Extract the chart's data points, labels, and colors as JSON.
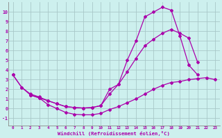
{
  "xlabel": "Windchill (Refroidissement éolien,°C)",
  "bg_color": "#cdf0ee",
  "grid_color": "#a8c8c8",
  "line_color": "#aa00aa",
  "x_ticks": [
    0,
    1,
    2,
    3,
    4,
    5,
    6,
    7,
    8,
    9,
    10,
    11,
    12,
    13,
    14,
    15,
    16,
    17,
    18,
    19,
    20,
    21,
    22,
    23
  ],
  "xlim": [
    -0.5,
    23.5
  ],
  "ylim": [
    -1.8,
    11.0
  ],
  "y_ticks": [
    -1,
    0,
    1,
    2,
    3,
    4,
    5,
    6,
    7,
    8,
    9,
    10
  ],
  "curve1_x": [
    0,
    1,
    2,
    3,
    4,
    5,
    6,
    7,
    8,
    9,
    10,
    11,
    12,
    13,
    14,
    15,
    16,
    17,
    18,
    19,
    20,
    21
  ],
  "curve1_y": [
    3.5,
    2.2,
    1.5,
    1.2,
    0.8,
    0.5,
    0.2,
    0.1,
    0.05,
    0.1,
    0.3,
    2.0,
    2.5,
    5.0,
    7.0,
    9.5,
    10.0,
    10.5,
    10.2,
    7.5,
    4.5,
    3.5
  ],
  "curve2_x": [
    0,
    1,
    2,
    3,
    4,
    5,
    6,
    7,
    8,
    9,
    10,
    11,
    12,
    13,
    14,
    15,
    16,
    17,
    18,
    19,
    20,
    21,
    22,
    23
  ],
  "curve2_y": [
    3.5,
    2.2,
    1.4,
    1.1,
    0.4,
    0.0,
    -0.4,
    -0.6,
    -0.65,
    -0.65,
    -0.5,
    -0.1,
    0.2,
    0.6,
    1.0,
    1.5,
    2.0,
    2.4,
    2.7,
    2.8,
    3.0,
    3.1,
    3.2,
    3.0
  ],
  "curve3_x": [
    2,
    3,
    4,
    5,
    6,
    7,
    8,
    9,
    10,
    11,
    12,
    13,
    14,
    15,
    16,
    17,
    18,
    19,
    20,
    21
  ],
  "curve3_y": [
    1.4,
    1.1,
    0.8,
    0.5,
    0.2,
    0.1,
    0.05,
    0.1,
    0.3,
    1.5,
    2.5,
    3.8,
    5.2,
    6.5,
    7.2,
    7.8,
    8.2,
    7.8,
    7.3,
    4.8
  ]
}
